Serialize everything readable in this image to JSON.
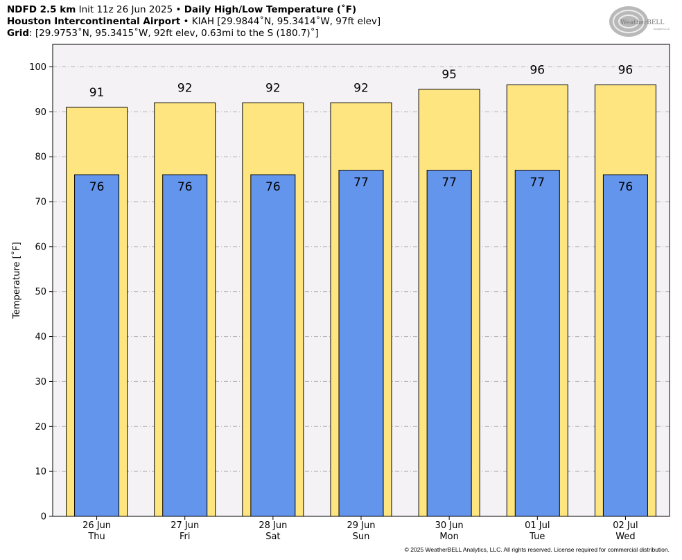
{
  "header": {
    "line1_bold": "NDFD 2.5 km",
    "line1_init": "Init 11z 26 Jun 2025",
    "line1_sep": "•",
    "line1_title": "Daily High/Low Temperature (˚F)",
    "line2_bold": "Houston Intercontinental Airport",
    "line2_sep": "•",
    "line2_rest": "KIAH [29.9844˚N, 95.3414˚W, 97ft elev]",
    "line3_bold": "Grid",
    "line3_rest": ": [29.9753˚N, 95.3415˚W, 92ft elev, 0.63mi to the S (180.7)˚]"
  },
  "logo": {
    "text_main": "WeatherBELL",
    "text_sub": "Analytics LLC"
  },
  "copyright": "© 2025 WeatherBELL Analytics, LLC. All rights reserved. License required for commercial distribution.",
  "chart_data": {
    "type": "bar",
    "ylabel": "Temperature [˚F]",
    "ylim": [
      0,
      105
    ],
    "yticks": [
      0,
      10,
      20,
      30,
      40,
      50,
      60,
      70,
      80,
      90,
      100
    ],
    "grid": true,
    "categories": [
      {
        "date": "26 Jun",
        "day": "Thu"
      },
      {
        "date": "27 Jun",
        "day": "Fri"
      },
      {
        "date": "28 Jun",
        "day": "Sat"
      },
      {
        "date": "29 Jun",
        "day": "Sun"
      },
      {
        "date": "30 Jun",
        "day": "Mon"
      },
      {
        "date": "01 Jul",
        "day": "Tue"
      },
      {
        "date": "02 Jul",
        "day": "Wed"
      }
    ],
    "series": [
      {
        "key": "high",
        "values": [
          91,
          92,
          92,
          92,
          95,
          96,
          96
        ],
        "color": "#FFE57F"
      },
      {
        "key": "low",
        "values": [
          76,
          76,
          76,
          77,
          77,
          77,
          76
        ],
        "color": "#6495ED"
      }
    ],
    "plot_background": "#F4F2F5"
  }
}
